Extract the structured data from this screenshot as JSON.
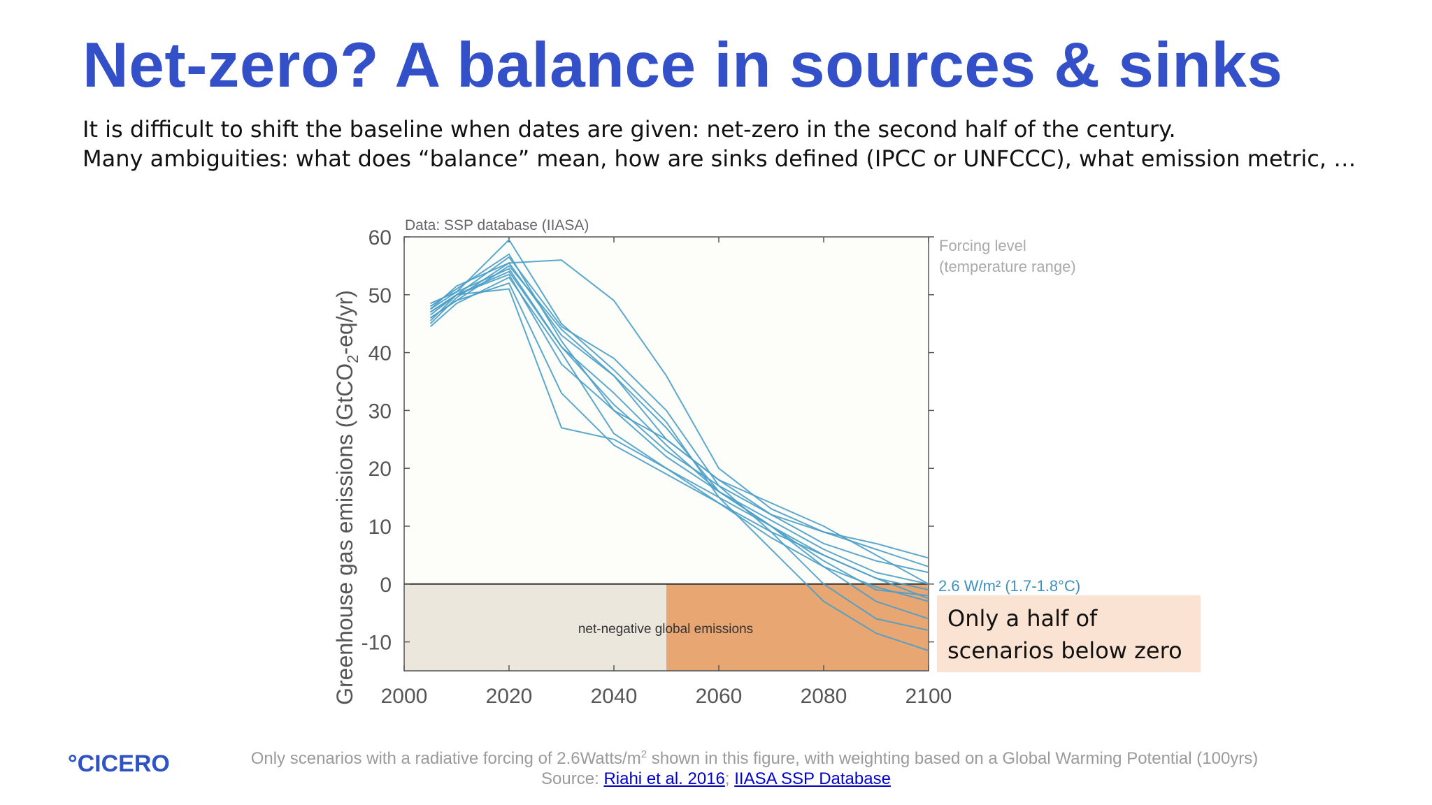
{
  "slide": {
    "title": "Net-zero? A balance in sources & sinks",
    "subtitle_line1": "It is difficult to shift the baseline when dates are given: net-zero in the second half of the century.",
    "subtitle_line2": "Many ambiguities: what does “balance” mean, how are sinks defined (IPCC or UNFCCC), what emission metric, …",
    "callout_line1": "Only a half of",
    "callout_line2": "scenarios below zero",
    "logo_text": "°CICERO",
    "footnote_line1_pre": "Only scenarios with a radiative forcing of 2.6Watts/m",
    "footnote_line1_sup": "2",
    "footnote_line1_post": " shown in this figure, with weighting based on a Global Warming Potential (100yrs)",
    "footnote_source_label": "Source: ",
    "footnote_link1": "Riahi et al. 2016",
    "footnote_separator": "; ",
    "footnote_link2": "IIASA SSP Database",
    "colors": {
      "title": "#3350c8",
      "line": "#4a9ec8",
      "negative_region": "#ece7dc",
      "highlight_region": "#e8a673",
      "callout_bg": "#fae3d3"
    }
  },
  "chart_data": {
    "type": "line",
    "data_source_label": "Data: SSP database (IIASA)",
    "ylabel_pre": "Greenhouse gas emissions (GtCO",
    "ylabel_sub": "2",
    "ylabel_post": "-eq/yr)",
    "xlabel": "",
    "xlim": [
      2000,
      2100
    ],
    "ylim": [
      -15,
      60
    ],
    "xticks": [
      2000,
      2020,
      2040,
      2060,
      2080,
      2100
    ],
    "yticks": [
      -10,
      0,
      10,
      20,
      30,
      40,
      50,
      60
    ],
    "legend_title_line1": "Forcing level",
    "legend_title_line2": "(temperature range)",
    "series_label": "2.6 W/m² (1.7-1.8°C)",
    "net_negative_label": "net-negative global emissions",
    "highlight_range_x": [
      2050,
      2100
    ],
    "x": [
      2005,
      2010,
      2020,
      2030,
      2040,
      2050,
      2060,
      2070,
      2080,
      2090,
      2100
    ],
    "series": [
      {
        "values": [
          47.5,
          50.5,
          59.5,
          45,
          37,
          28,
          15,
          6,
          -3,
          -8.5,
          -11.5
        ]
      },
      {
        "values": [
          46.5,
          50,
          56.5,
          44.5,
          39,
          30,
          17,
          9,
          0,
          -6,
          -8
        ]
      },
      {
        "values": [
          45,
          49.5,
          55.5,
          43,
          36,
          27,
          16,
          10,
          3,
          -3,
          -6
        ]
      },
      {
        "values": [
          48,
          51,
          57,
          42,
          30,
          22,
          16,
          11,
          6,
          2,
          0
        ]
      },
      {
        "values": [
          44.5,
          48.5,
          53,
          40,
          26,
          20,
          15,
          10,
          4,
          -1,
          -2
        ]
      },
      {
        "values": [
          46,
          49,
          52,
          33,
          24,
          19,
          14,
          9,
          5,
          1,
          -1
        ]
      },
      {
        "values": [
          47,
          50,
          51,
          27,
          25,
          20,
          14,
          8,
          3,
          -0.5,
          -3
        ]
      },
      {
        "values": [
          45.5,
          50,
          54,
          41,
          31,
          23,
          17,
          12,
          7,
          4,
          2
        ]
      },
      {
        "values": [
          47.5,
          51.5,
          55.5,
          56,
          49,
          36,
          20,
          13,
          9,
          6,
          3
        ]
      },
      {
        "values": [
          46,
          49,
          55,
          44,
          36,
          25,
          18,
          12,
          9,
          7,
          4.5
        ]
      },
      {
        "values": [
          47,
          50,
          53.5,
          38,
          30,
          25,
          18,
          14,
          10,
          5,
          0
        ]
      },
      {
        "values": [
          48.5,
          50.5,
          54.5,
          41,
          33,
          24,
          16,
          10,
          5,
          1,
          -2.5
        ]
      }
    ]
  }
}
